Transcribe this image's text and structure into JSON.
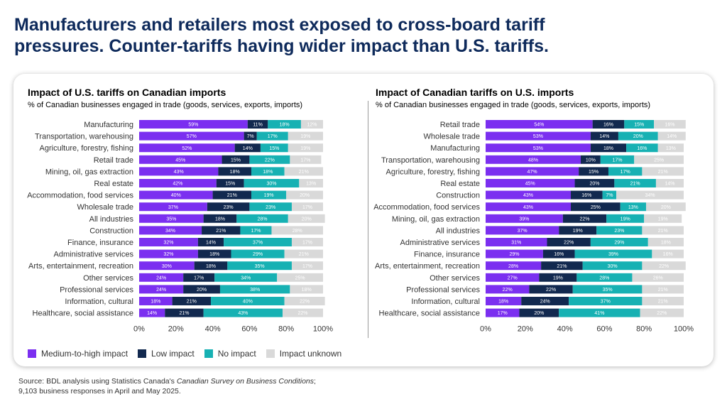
{
  "title": {
    "line1": "Manufacturers and retailers most exposed to cross-board tariff",
    "line2": "pressures. Counter-tariffs having wider impact than U.S. tariffs."
  },
  "colors": {
    "medium_high": "#7b2ff0",
    "low": "#12294f",
    "none": "#17b1b3",
    "unknown": "#d9d9d9"
  },
  "legend": {
    "items": [
      {
        "label": "Medium-to-high impact",
        "color": "#7b2ff0"
      },
      {
        "label": "Low impact",
        "color": "#12294f"
      },
      {
        "label": "No impact",
        "color": "#17b1b3"
      },
      {
        "label": "Impact unknown",
        "color": "#d9d9d9"
      }
    ]
  },
  "source": {
    "line1_pre": "Source: BDL analysis using Statistics Canada's ",
    "line1_em": "Canadian Survey on Business Conditions",
    "line1_post": ";",
    "line2": "9,103 business responses in April and May 2025."
  },
  "chart_data": [
    {
      "type": "bar",
      "orientation": "horizontal",
      "stacked": true,
      "title": "Impact of U.S. tariffs on Canadian imports",
      "subtitle": "% of Canadian businesses engaged in trade (goods, services, exports, imports)",
      "xlim": [
        0,
        100
      ],
      "x_ticks": [
        "0%",
        "20%",
        "40%",
        "60%",
        "80%",
        "100%"
      ],
      "categories": [
        "Manufacturing",
        "Transportation, warehousing",
        "Agriculture, forestry, fishing",
        "Retail trade",
        "Mining, oil, gas extraction",
        "Real estate",
        "Accommodation, food services",
        "Wholesale trade",
        "All industries",
        "Construction",
        "Finance, insurance",
        "Administrative services",
        "Arts, entertainment, recreation",
        "Other services",
        "Professional services",
        "Information, cultural",
        "Healthcare, social assistance"
      ],
      "series": [
        {
          "name": "Medium-to-high impact",
          "values": [
            59,
            57,
            52,
            45,
            43,
            42,
            40,
            37,
            35,
            34,
            32,
            32,
            30,
            24,
            24,
            18,
            14
          ]
        },
        {
          "name": "Low impact",
          "values": [
            11,
            7,
            14,
            15,
            18,
            15,
            21,
            23,
            18,
            21,
            14,
            18,
            18,
            17,
            20,
            21,
            21
          ]
        },
        {
          "name": "No impact",
          "values": [
            18,
            17,
            15,
            22,
            18,
            30,
            19,
            23,
            28,
            17,
            37,
            29,
            35,
            34,
            38,
            40,
            43
          ]
        },
        {
          "name": "Impact unknown",
          "values": [
            12,
            19,
            19,
            17,
            21,
            13,
            20,
            17,
            20,
            28,
            17,
            21,
            17,
            25,
            18,
            22,
            22
          ]
        }
      ],
      "legend": "bottom-left",
      "grid": false
    },
    {
      "type": "bar",
      "orientation": "horizontal",
      "stacked": true,
      "title": "Impact of Canadian tariffs on U.S. imports",
      "subtitle": "% of Canadian businesses engaged in trade (goods, services, exports, imports)",
      "xlim": [
        0,
        100
      ],
      "x_ticks": [
        "0%",
        "20%",
        "40%",
        "60%",
        "80%",
        "100%"
      ],
      "categories": [
        "Retail trade",
        "Wholesale trade",
        "Manufacturing",
        "Transportation, warehousing",
        "Agriculture, forestry, fishing",
        "Real estate",
        "Construction",
        "Accommodation, food services",
        "Mining, oil, gas extraction",
        "All industries",
        "Administrative services",
        "Finance, insurance",
        "Arts, entertainment, recreation",
        "Other services",
        "Professional services",
        "Information, cultural",
        "Healthcare, social assistance"
      ],
      "series": [
        {
          "name": "Medium-to-high impact",
          "values": [
            54,
            53,
            53,
            48,
            47,
            45,
            43,
            43,
            39,
            37,
            31,
            29,
            28,
            27,
            22,
            18,
            17
          ]
        },
        {
          "name": "Low impact",
          "values": [
            16,
            14,
            18,
            10,
            15,
            20,
            16,
            25,
            22,
            19,
            22,
            16,
            21,
            19,
            22,
            24,
            20
          ]
        },
        {
          "name": "No impact",
          "values": [
            15,
            20,
            16,
            17,
            17,
            21,
            7,
            13,
            19,
            23,
            29,
            39,
            30,
            28,
            35,
            37,
            41
          ]
        },
        {
          "name": "Impact unknown",
          "values": [
            16,
            14,
            13,
            25,
            21,
            14,
            34,
            20,
            19,
            21,
            18,
            16,
            22,
            26,
            21,
            21,
            22
          ]
        }
      ],
      "legend": "bottom-left",
      "grid": false
    }
  ]
}
